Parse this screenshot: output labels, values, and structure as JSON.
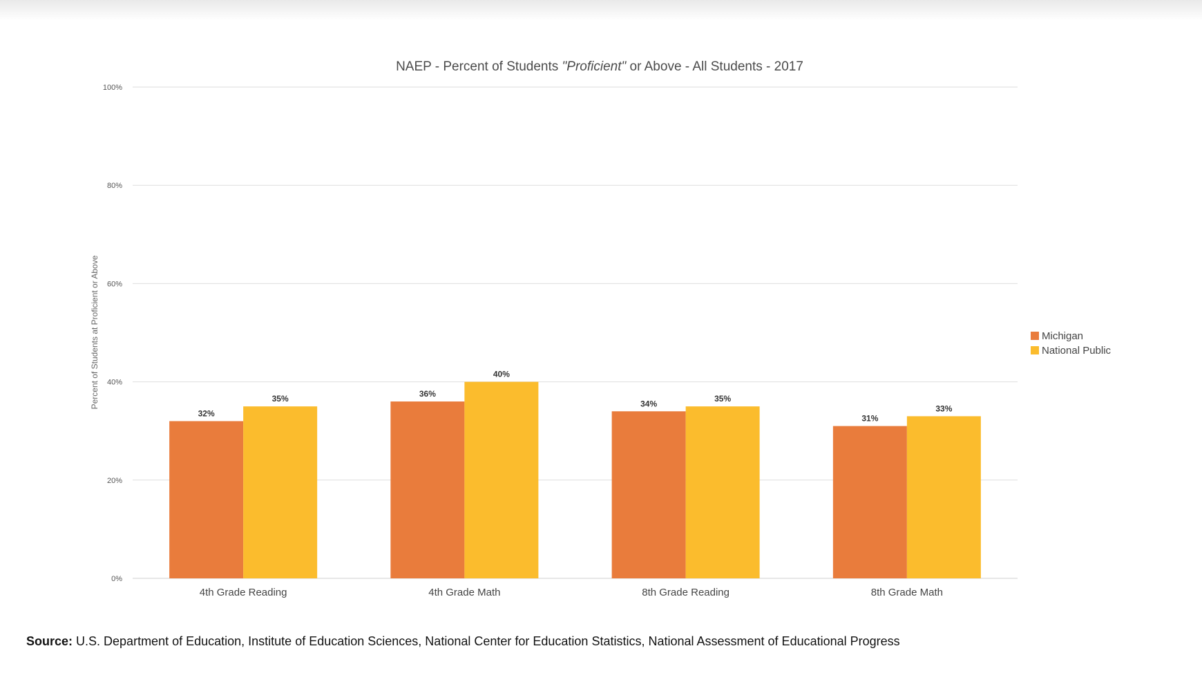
{
  "chart_data": {
    "type": "bar",
    "title_parts": [
      "NAEP - Percent of Students ",
      "\"Proficient\"",
      " or Above - All Students - 2017"
    ],
    "ylabel": "Percent of Students at Proficient or Above",
    "xlabel": "",
    "ylim": [
      0,
      100
    ],
    "yticks": [
      0,
      20,
      40,
      60,
      80,
      100
    ],
    "ytick_labels": [
      "0%",
      "20%",
      "40%",
      "60%",
      "80%",
      "100%"
    ],
    "categories": [
      "4th Grade Reading",
      "4th Grade Math",
      "8th Grade Reading",
      "8th Grade Math"
    ],
    "series": [
      {
        "name": "Michigan",
        "values": [
          32,
          36,
          34,
          31
        ],
        "labels": [
          "32%",
          "36%",
          "34%",
          "31%"
        ],
        "color": "#E97C3C"
      },
      {
        "name": "National Public",
        "values": [
          35,
          40,
          35,
          33
        ],
        "labels": [
          "35%",
          "40%",
          "35%",
          "33%"
        ],
        "color": "#FBBC2D"
      }
    ],
    "grid": true,
    "legend_position": "right"
  },
  "source": {
    "label": "Source:",
    "text": " U.S. Department of Education, Institute of Education Sciences, National Center for Education Statistics, National Assessment of Educational Progress"
  }
}
